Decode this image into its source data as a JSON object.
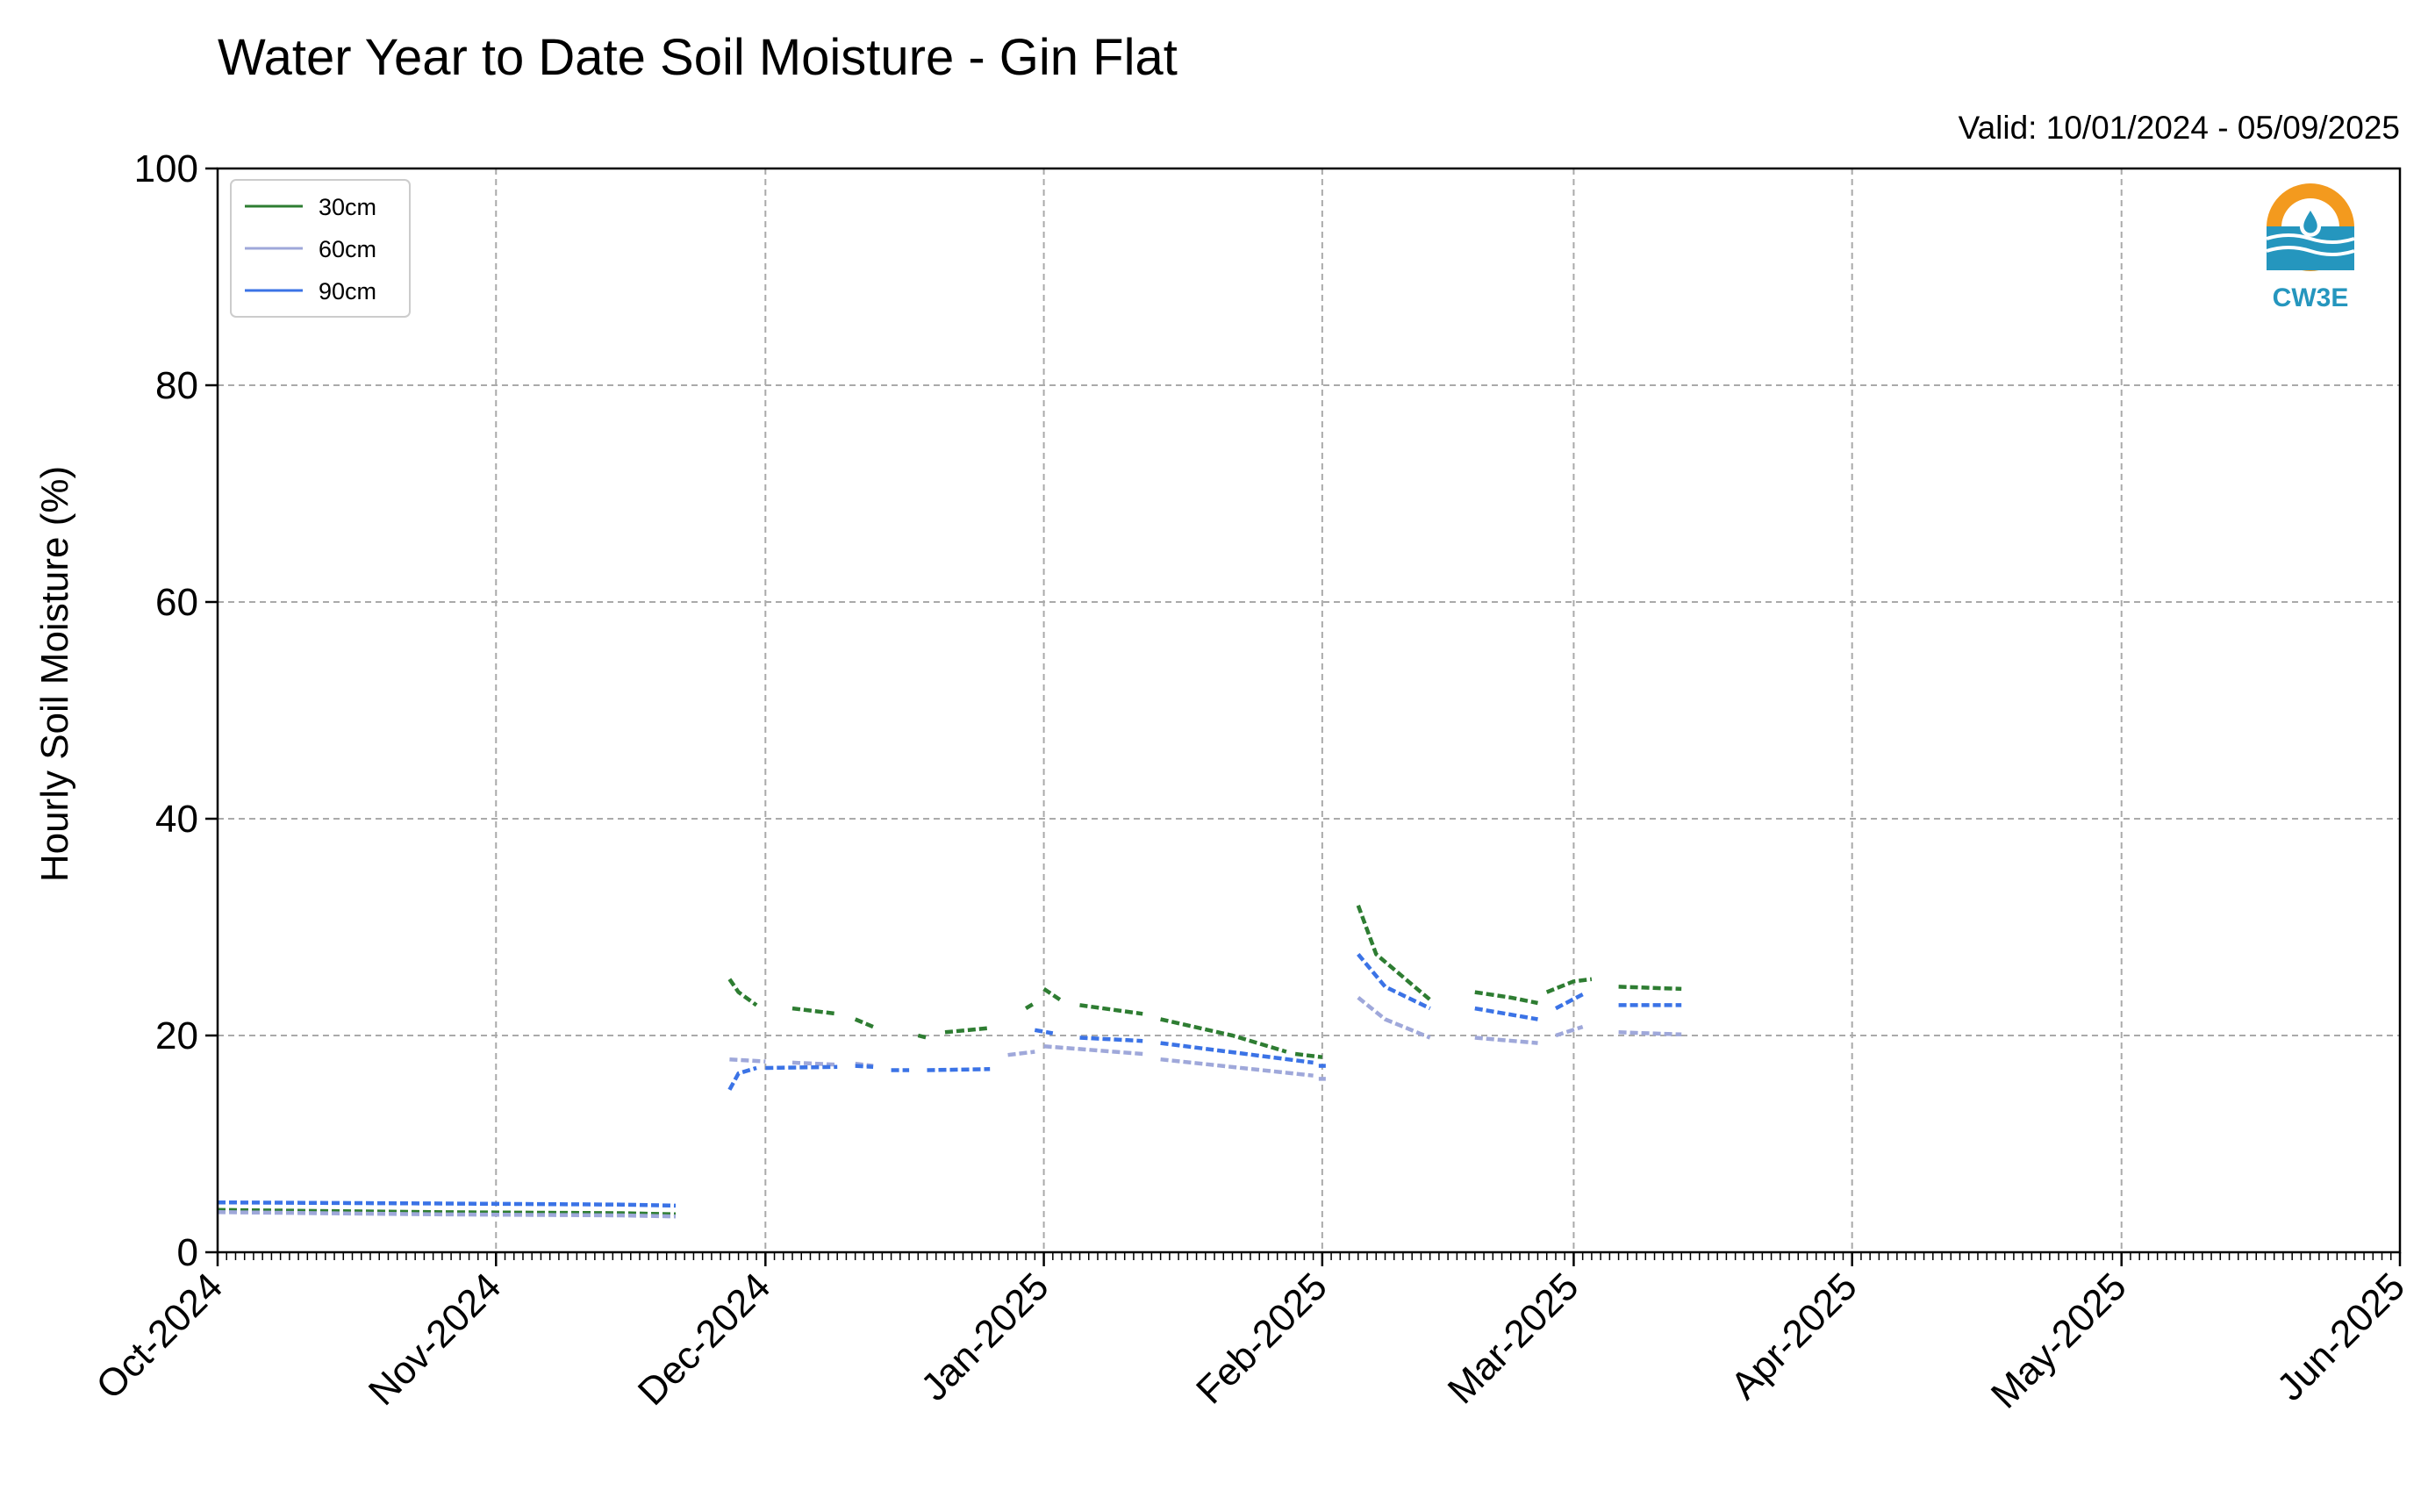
{
  "chart_data": {
    "type": "line",
    "title": "Water Year to Date Soil Moisture - Gin Flat",
    "subtitle": "Valid: 10/01/2024 - 05/09/2025",
    "xlabel": "",
    "ylabel": "Hourly Soil Moisture (%)",
    "ylim": [
      0,
      100
    ],
    "xlim": [
      "2024-10-01",
      "2025-06-01"
    ],
    "yticks": [
      "0",
      "20",
      "40",
      "60",
      "80",
      "100"
    ],
    "xticks": [
      {
        "date": "2024-10-01",
        "label": "Oct-2024"
      },
      {
        "date": "2024-11-01",
        "label": "Nov-2024"
      },
      {
        "date": "2024-12-01",
        "label": "Dec-2024"
      },
      {
        "date": "2025-01-01",
        "label": "Jan-2025"
      },
      {
        "date": "2025-02-01",
        "label": "Feb-2025"
      },
      {
        "date": "2025-03-01",
        "label": "Mar-2025"
      },
      {
        "date": "2025-04-01",
        "label": "Apr-2025"
      },
      {
        "date": "2025-05-01",
        "label": "May-2025"
      },
      {
        "date": "2025-06-01",
        "label": "Jun-2025"
      }
    ],
    "grid": true,
    "legend_position": "top-left",
    "series": [
      {
        "name": "30cm",
        "color": "#2e7d32",
        "segments": [
          [
            [
              "2024-10-01",
              3.9
            ],
            [
              "2024-10-25",
              3.7
            ],
            [
              "2024-11-15",
              3.6
            ],
            [
              "2024-11-21",
              3.5
            ]
          ],
          [
            [
              "2024-11-27",
              25.2
            ],
            [
              "2024-11-28",
              24.0
            ],
            [
              "2024-11-30",
              22.8
            ]
          ],
          [
            [
              "2024-12-04",
              22.5
            ],
            [
              "2024-12-09",
              22.0
            ]
          ],
          [
            [
              "2024-12-11",
              21.5
            ],
            [
              "2024-12-13",
              20.8
            ]
          ],
          [
            [
              "2024-12-18",
              20.0
            ],
            [
              "2024-12-19",
              19.8
            ]
          ],
          [
            [
              "2024-12-21",
              20.3
            ],
            [
              "2024-12-26",
              20.7
            ]
          ],
          [
            [
              "2024-12-30",
              22.5
            ],
            [
              "2024-12-31",
              23.0
            ]
          ],
          [
            [
              "2025-01-01",
              24.3
            ],
            [
              "2025-01-03",
              23.2
            ]
          ],
          [
            [
              "2025-01-05",
              22.8
            ],
            [
              "2025-01-12",
              22.0
            ]
          ],
          [
            [
              "2025-01-14",
              21.5
            ],
            [
              "2025-01-22",
              20.0
            ],
            [
              "2025-01-28",
              18.5
            ]
          ],
          [
            [
              "2025-01-29",
              18.3
            ],
            [
              "2025-02-01",
              18.0
            ]
          ],
          [
            [
              "2025-02-05",
              32.0
            ],
            [
              "2025-02-07",
              27.5
            ],
            [
              "2025-02-12",
              24.0
            ],
            [
              "2025-02-13",
              23.3
            ]
          ],
          [
            [
              "2025-02-18",
              24.0
            ],
            [
              "2025-02-22",
              23.5
            ],
            [
              "2025-02-25",
              23.0
            ]
          ],
          [
            [
              "2025-02-26",
              24.0
            ],
            [
              "2025-03-01",
              25.0
            ],
            [
              "2025-03-03",
              25.2
            ]
          ],
          [
            [
              "2025-03-06",
              24.5
            ],
            [
              "2025-03-13",
              24.3
            ]
          ]
        ]
      },
      {
        "name": "60cm",
        "color": "#9fa8da",
        "segments": [
          [
            [
              "2024-10-01",
              3.7
            ],
            [
              "2024-10-25",
              3.5
            ],
            [
              "2024-11-15",
              3.4
            ],
            [
              "2024-11-21",
              3.3
            ]
          ],
          [
            [
              "2024-11-27",
              17.8
            ],
            [
              "2024-12-01",
              17.6
            ]
          ],
          [
            [
              "2024-12-04",
              17.5
            ],
            [
              "2024-12-09",
              17.3
            ]
          ],
          [
            [
              "2024-12-11",
              17.4
            ],
            [
              "2024-12-13",
              17.2
            ]
          ],
          [
            [
              "2024-12-28",
              18.2
            ],
            [
              "2024-12-31",
              18.5
            ]
          ],
          [
            [
              "2025-01-01",
              19.0
            ],
            [
              "2025-01-12",
              18.3
            ]
          ],
          [
            [
              "2025-01-14",
              17.8
            ],
            [
              "2025-01-31",
              16.3
            ]
          ],
          [
            [
              "2025-02-01",
              16.0
            ]
          ],
          [
            [
              "2025-02-05",
              23.5
            ],
            [
              "2025-02-08",
              21.5
            ],
            [
              "2025-02-13",
              19.8
            ]
          ],
          [
            [
              "2025-02-18",
              19.8
            ],
            [
              "2025-02-25",
              19.3
            ]
          ],
          [
            [
              "2025-02-27",
              20.0
            ],
            [
              "2025-03-02",
              20.8
            ]
          ],
          [
            [
              "2025-03-06",
              20.3
            ],
            [
              "2025-03-13",
              20.1
            ]
          ]
        ]
      },
      {
        "name": "90cm",
        "color": "#3b73e6",
        "segments": [
          [
            [
              "2024-10-01",
              4.6
            ],
            [
              "2024-10-25",
              4.5
            ],
            [
              "2024-11-15",
              4.4
            ],
            [
              "2024-11-21",
              4.3
            ]
          ],
          [
            [
              "2024-11-27",
              15.0
            ],
            [
              "2024-11-28",
              16.5
            ],
            [
              "2024-11-30",
              17.0
            ]
          ],
          [
            [
              "2024-12-01",
              17.0
            ],
            [
              "2024-12-09",
              17.1
            ]
          ],
          [
            [
              "2024-12-11",
              17.2
            ],
            [
              "2024-12-13",
              17.1
            ]
          ],
          [
            [
              "2024-12-15",
              16.8
            ],
            [
              "2024-12-17",
              16.8
            ]
          ],
          [
            [
              "2024-12-19",
              16.8
            ],
            [
              "2024-12-26",
              16.9
            ]
          ],
          [
            [
              "2024-12-31",
              20.5
            ],
            [
              "2025-01-02",
              20.2
            ]
          ],
          [
            [
              "2025-01-05",
              19.8
            ],
            [
              "2025-01-12",
              19.5
            ]
          ],
          [
            [
              "2025-01-14",
              19.3
            ],
            [
              "2025-01-31",
              17.5
            ]
          ],
          [
            [
              "2025-02-01",
              17.2
            ]
          ],
          [
            [
              "2025-02-05",
              27.5
            ],
            [
              "2025-02-08",
              24.5
            ],
            [
              "2025-02-13",
              22.5
            ]
          ],
          [
            [
              "2025-02-18",
              22.5
            ],
            [
              "2025-02-25",
              21.5
            ]
          ],
          [
            [
              "2025-02-27",
              22.5
            ],
            [
              "2025-03-02",
              23.8
            ]
          ],
          [
            [
              "2025-03-06",
              22.8
            ],
            [
              "2025-03-13",
              22.8
            ]
          ]
        ]
      }
    ]
  },
  "logo": {
    "text": "CW3E",
    "colors": {
      "orange": "#f39a1e",
      "teal": "#2596be"
    }
  }
}
